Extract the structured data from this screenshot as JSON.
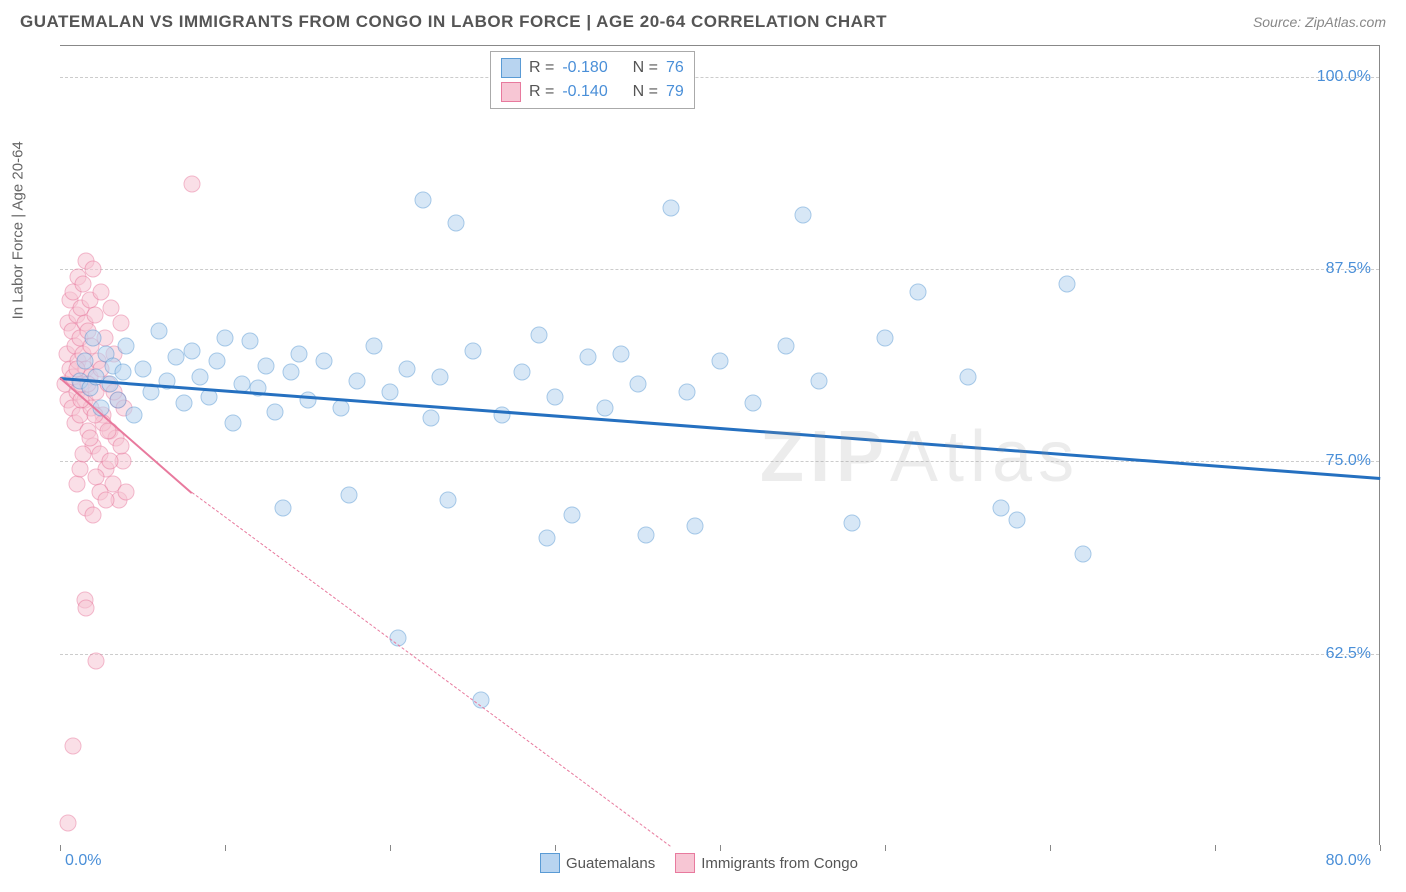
{
  "header": {
    "title": "GUATEMALAN VS IMMIGRANTS FROM CONGO IN LABOR FORCE | AGE 20-64 CORRELATION CHART",
    "source": "Source: ZipAtlas.com"
  },
  "chart": {
    "type": "scatter",
    "ylabel": "In Labor Force | Age 20-64",
    "xlim": [
      0,
      80
    ],
    "ylim": [
      50,
      102
    ],
    "ytick_labels": [
      "62.5%",
      "75.0%",
      "87.5%",
      "100.0%"
    ],
    "ytick_values": [
      62.5,
      75.0,
      87.5,
      100.0
    ],
    "xtick_min": "0.0%",
    "xtick_max": "80.0%",
    "xtick_positions": [
      0,
      10,
      20,
      30,
      40,
      50,
      60,
      70,
      80
    ],
    "grid_color": "#cccccc",
    "background_color": "#ffffff",
    "axis_color": "#888888",
    "marker_size": 17,
    "marker_opacity": 0.55
  },
  "stats": {
    "rows": [
      {
        "swatch_fill": "#b8d4f0",
        "swatch_border": "#5a9bd5",
        "r_label": "R =",
        "r_val": "-0.180",
        "n_label": "N =",
        "n_val": "76"
      },
      {
        "swatch_fill": "#f7c6d4",
        "swatch_border": "#e87a9e",
        "r_label": "R =",
        "r_val": "-0.140",
        "n_label": "N =",
        "n_val": "79"
      }
    ]
  },
  "legend": {
    "items": [
      {
        "swatch_fill": "#b8d4f0",
        "swatch_border": "#5a9bd5",
        "label": "Guatemalans"
      },
      {
        "swatch_fill": "#f7c6d4",
        "swatch_border": "#e87a9e",
        "label": "Immigrants from Congo"
      }
    ]
  },
  "series": {
    "blue": {
      "fill": "#b8d4f0",
      "border": "#5a9bd5",
      "reg_color": "#2570c0",
      "reg_start": {
        "x": 0,
        "y": 80.5
      },
      "reg_end_solid": {
        "x": 80,
        "y": 74
      },
      "points": [
        [
          1.2,
          80.2
        ],
        [
          1.5,
          81.5
        ],
        [
          1.8,
          79.8
        ],
        [
          2.0,
          83.0
        ],
        [
          2.2,
          80.5
        ],
        [
          2.5,
          78.5
        ],
        [
          2.8,
          82.0
        ],
        [
          3.0,
          80.0
        ],
        [
          3.2,
          81.2
        ],
        [
          3.5,
          79.0
        ],
        [
          3.8,
          80.8
        ],
        [
          4.0,
          82.5
        ],
        [
          4.5,
          78.0
        ],
        [
          5.0,
          81.0
        ],
        [
          5.5,
          79.5
        ],
        [
          6.0,
          83.5
        ],
        [
          6.5,
          80.2
        ],
        [
          7.0,
          81.8
        ],
        [
          7.5,
          78.8
        ],
        [
          8.0,
          82.2
        ],
        [
          8.5,
          80.5
        ],
        [
          9.0,
          79.2
        ],
        [
          9.5,
          81.5
        ],
        [
          10.0,
          83.0
        ],
        [
          10.5,
          77.5
        ],
        [
          11.0,
          80.0
        ],
        [
          11.5,
          82.8
        ],
        [
          12.0,
          79.8
        ],
        [
          12.5,
          81.2
        ],
        [
          13.0,
          78.2
        ],
        [
          13.5,
          72.0
        ],
        [
          14.0,
          80.8
        ],
        [
          14.5,
          82.0
        ],
        [
          15.0,
          79.0
        ],
        [
          16.0,
          81.5
        ],
        [
          17.0,
          78.5
        ],
        [
          17.5,
          72.8
        ],
        [
          18.0,
          80.2
        ],
        [
          19.0,
          82.5
        ],
        [
          20.0,
          79.5
        ],
        [
          20.5,
          63.5
        ],
        [
          21.0,
          81.0
        ],
        [
          22.0,
          92.0
        ],
        [
          22.5,
          77.8
        ],
        [
          23.0,
          80.5
        ],
        [
          23.5,
          72.5
        ],
        [
          24.0,
          90.5
        ],
        [
          25.0,
          82.2
        ],
        [
          25.5,
          59.5
        ],
        [
          26.8,
          78.0
        ],
        [
          28.0,
          80.8
        ],
        [
          29.0,
          83.2
        ],
        [
          29.5,
          70.0
        ],
        [
          30.0,
          79.2
        ],
        [
          31.0,
          71.5
        ],
        [
          32.0,
          81.8
        ],
        [
          33.0,
          78.5
        ],
        [
          34.0,
          82.0
        ],
        [
          35.0,
          80.0
        ],
        [
          35.5,
          70.2
        ],
        [
          37.0,
          91.5
        ],
        [
          38.0,
          79.5
        ],
        [
          38.5,
          70.8
        ],
        [
          40.0,
          81.5
        ],
        [
          42.0,
          78.8
        ],
        [
          44.0,
          82.5
        ],
        [
          45.0,
          91.0
        ],
        [
          46.0,
          80.2
        ],
        [
          48.0,
          71.0
        ],
        [
          50.0,
          83.0
        ],
        [
          52.0,
          86.0
        ],
        [
          55.0,
          80.5
        ],
        [
          57.0,
          72.0
        ],
        [
          61.0,
          86.5
        ],
        [
          62.0,
          69.0
        ],
        [
          58.0,
          71.2
        ]
      ]
    },
    "pink": {
      "fill": "#f7c6d4",
      "border": "#e87a9e",
      "reg_color": "#e87a9e",
      "reg_start": {
        "x": 0,
        "y": 80.5
      },
      "reg_end_solid": {
        "x": 8,
        "y": 73.0
      },
      "reg_end_dash": {
        "x": 37,
        "y": 50.0
      },
      "points": [
        [
          0.3,
          80.0
        ],
        [
          0.4,
          82.0
        ],
        [
          0.5,
          79.0
        ],
        [
          0.5,
          84.0
        ],
        [
          0.6,
          81.0
        ],
        [
          0.6,
          85.5
        ],
        [
          0.7,
          78.5
        ],
        [
          0.7,
          83.5
        ],
        [
          0.8,
          80.5
        ],
        [
          0.8,
          86.0
        ],
        [
          0.9,
          82.5
        ],
        [
          0.9,
          77.5
        ],
        [
          1.0,
          84.5
        ],
        [
          1.0,
          79.5
        ],
        [
          1.1,
          81.5
        ],
        [
          1.1,
          87.0
        ],
        [
          1.2,
          83.0
        ],
        [
          1.2,
          78.0
        ],
        [
          1.3,
          85.0
        ],
        [
          1.3,
          80.0
        ],
        [
          1.4,
          82.0
        ],
        [
          1.4,
          86.5
        ],
        [
          1.5,
          79.0
        ],
        [
          1.5,
          84.0
        ],
        [
          1.6,
          81.0
        ],
        [
          1.6,
          88.0
        ],
        [
          1.7,
          77.0
        ],
        [
          1.7,
          83.5
        ],
        [
          1.8,
          80.5
        ],
        [
          1.8,
          85.5
        ],
        [
          1.9,
          78.5
        ],
        [
          1.9,
          82.5
        ],
        [
          2.0,
          87.5
        ],
        [
          2.0,
          76.0
        ],
        [
          2.1,
          84.5
        ],
        [
          2.2,
          79.5
        ],
        [
          2.3,
          81.5
        ],
        [
          2.4,
          75.5
        ],
        [
          2.5,
          86.0
        ],
        [
          2.6,
          78.0
        ],
        [
          2.7,
          83.0
        ],
        [
          2.8,
          74.5
        ],
        [
          2.9,
          80.0
        ],
        [
          3.0,
          77.0
        ],
        [
          3.1,
          85.0
        ],
        [
          3.2,
          73.5
        ],
        [
          3.3,
          82.0
        ],
        [
          3.4,
          76.5
        ],
        [
          3.5,
          79.0
        ],
        [
          3.6,
          72.5
        ],
        [
          3.7,
          84.0
        ],
        [
          3.8,
          75.0
        ],
        [
          3.9,
          78.5
        ],
        [
          4.0,
          73.0
        ],
        [
          1.0,
          73.5
        ],
        [
          1.2,
          74.5
        ],
        [
          1.4,
          75.5
        ],
        [
          1.6,
          72.0
        ],
        [
          1.8,
          76.5
        ],
        [
          2.0,
          71.5
        ],
        [
          2.2,
          74.0
        ],
        [
          2.4,
          73.0
        ],
        [
          2.6,
          77.5
        ],
        [
          2.8,
          72.5
        ],
        [
          3.0,
          75.0
        ],
        [
          1.5,
          66.0
        ],
        [
          1.6,
          65.5
        ],
        [
          2.2,
          62.0
        ],
        [
          0.8,
          56.5
        ],
        [
          0.5,
          51.5
        ],
        [
          8.0,
          93.0
        ],
        [
          1.0,
          81.0
        ],
        [
          1.3,
          79.0
        ],
        [
          1.7,
          80.0
        ],
        [
          2.1,
          78.0
        ],
        [
          2.5,
          81.0
        ],
        [
          2.9,
          77.0
        ],
        [
          3.3,
          79.5
        ],
        [
          3.7,
          76.0
        ]
      ]
    }
  },
  "watermark": {
    "left": "ZIP",
    "right": "Atlas"
  }
}
